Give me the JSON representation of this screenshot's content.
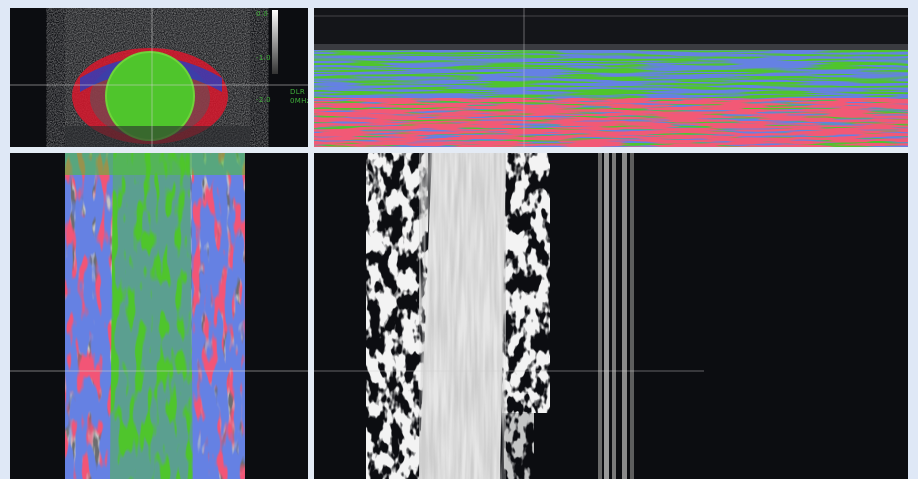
{
  "scale": {
    "top_label": "0.0",
    "mid_label": "-1.0",
    "low_label": "-2.0"
  },
  "legend": {
    "line1": "DLR",
    "line2": "0MHz"
  },
  "colors": {
    "background": "#dfe8f6",
    "frame": "#0b0c10",
    "green": "#4fc52c",
    "red": "#e3192e",
    "blue": "#2039c4",
    "gray": "#8a8a8a",
    "white": "#ececec"
  },
  "panels": [
    {
      "name": "transverse-view",
      "mode": "color-overlay"
    },
    {
      "name": "m-mode-view",
      "mode": "color-overlay"
    },
    {
      "name": "longitudinal-view",
      "mode": "color-overlay"
    },
    {
      "name": "reconstruction-view",
      "mode": "grayscale"
    }
  ]
}
